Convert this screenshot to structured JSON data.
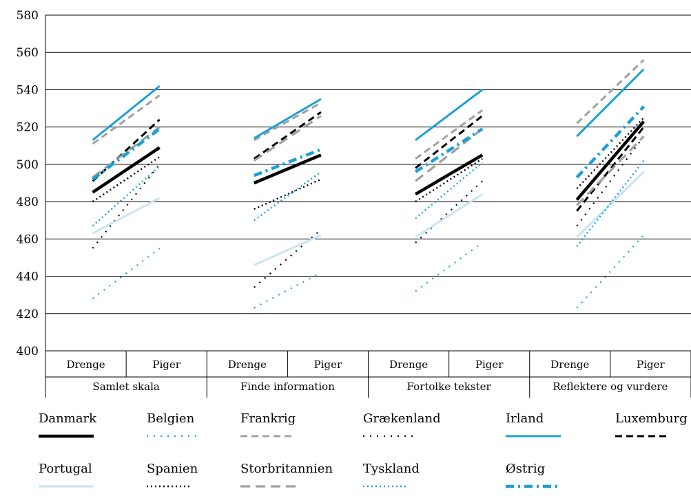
{
  "chart_data": {
    "type": "line",
    "ylim": [
      400,
      580
    ],
    "yticks": [
      400,
      420,
      440,
      460,
      480,
      500,
      520,
      540,
      560,
      580
    ],
    "groups": [
      {
        "label": "Samlet skala",
        "subcategories": [
          "Drenge",
          "Piger"
        ]
      },
      {
        "label": "Finde information",
        "subcategories": [
          "Drenge",
          "Piger"
        ]
      },
      {
        "label": "Fortolke tekster",
        "subcategories": [
          "Drenge",
          "Piger"
        ]
      },
      {
        "label": "Reflektere og vurdere",
        "subcategories": [
          "Drenge",
          "Piger"
        ]
      }
    ],
    "series": [
      {
        "name": "Danmark",
        "color": "#000000",
        "style": "solid-thick",
        "values": [
          [
            485,
            509
          ],
          [
            490,
            505
          ],
          [
            484,
            505
          ],
          [
            481,
            523
          ]
        ]
      },
      {
        "name": "Belgien",
        "color": "#1aa0d8",
        "style": "dotted",
        "values": [
          [
            428,
            455
          ],
          [
            423,
            442
          ],
          [
            432,
            458
          ],
          [
            423,
            462
          ]
        ]
      },
      {
        "name": "Frankrig",
        "color": "#a0a0a0",
        "style": "dashed",
        "values": [
          [
            511,
            537
          ],
          [
            513,
            533
          ],
          [
            503,
            529
          ],
          [
            522,
            556
          ]
        ]
      },
      {
        "name": "Grækenland",
        "color": "#000000",
        "style": "dotted",
        "values": [
          [
            455,
            500
          ],
          [
            434,
            465
          ],
          [
            458,
            491
          ],
          [
            467,
            515
          ]
        ]
      },
      {
        "name": "Irland",
        "color": "#1aa0d8",
        "style": "solid",
        "values": [
          [
            513,
            542
          ],
          [
            514,
            535
          ],
          [
            513,
            540
          ],
          [
            515,
            551
          ]
        ]
      },
      {
        "name": "Luxemburg",
        "color": "#000000",
        "style": "dashed",
        "values": [
          [
            491,
            524
          ],
          [
            503,
            528
          ],
          [
            498,
            526
          ],
          [
            475,
            520
          ]
        ]
      },
      {
        "name": "Portugal",
        "color": "#c8e4f4",
        "style": "solid",
        "values": [
          [
            463,
            482
          ],
          [
            446,
            462
          ],
          [
            461,
            484
          ],
          [
            461,
            496
          ]
        ]
      },
      {
        "name": "Spanien",
        "color": "#000000",
        "style": "dotted-fine",
        "values": [
          [
            480,
            504
          ],
          [
            476,
            492
          ],
          [
            480,
            503
          ],
          [
            487,
            525
          ]
        ]
      },
      {
        "name": "Storbritannien",
        "color": "#a0a0a0",
        "style": "dashed-wide",
        "values": [
          [
            493,
            520
          ],
          [
            502,
            526
          ],
          [
            491,
            519
          ],
          [
            478,
            515
          ]
        ]
      },
      {
        "name": "Tyskland",
        "color": "#1aa0d8",
        "style": "dotted-fine",
        "values": [
          [
            467,
            499
          ],
          [
            470,
            496
          ],
          [
            471,
            501
          ],
          [
            456,
            502
          ]
        ]
      },
      {
        "name": "Østrig",
        "color": "#1aa0d8",
        "style": "dashdot",
        "values": [
          [
            492,
            519
          ],
          [
            494,
            508
          ],
          [
            496,
            519
          ],
          [
            493,
            531
          ]
        ]
      }
    ]
  }
}
